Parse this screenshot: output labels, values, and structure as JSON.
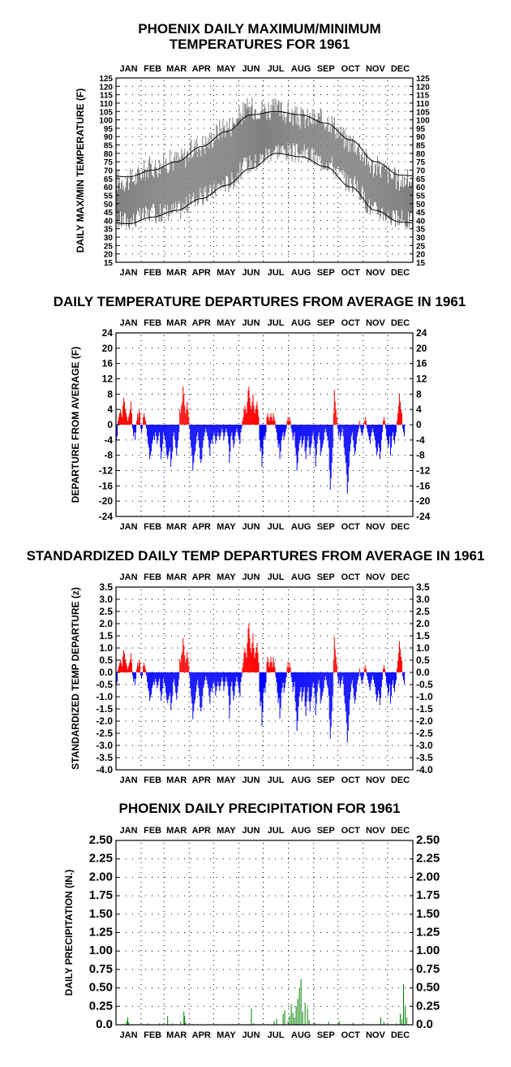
{
  "months": [
    "JAN",
    "FEB",
    "MAR",
    "APR",
    "MAY",
    "JUN",
    "JUL",
    "AUG",
    "SEP",
    "OCT",
    "NOV",
    "DEC"
  ],
  "colors": {
    "pos": "#ff0000",
    "neg": "#0000ff",
    "range": "#808080",
    "precip": "#008000",
    "axis": "#000000"
  },
  "chart_data": [
    {
      "type": "area",
      "title_line1": "PHOENIX DAILY MAXIMUM/MINIMUM",
      "title_line2": "TEMPERATURES FOR 1961",
      "ylabel": "DAILY MAX/MIN TEMPERATURE (F)",
      "ylim": [
        15,
        125
      ],
      "yticks": [
        15,
        20,
        25,
        30,
        35,
        40,
        45,
        50,
        55,
        60,
        65,
        70,
        75,
        80,
        85,
        90,
        95,
        100,
        105,
        110,
        115,
        120,
        125
      ],
      "grid": true,
      "normal_max_monthly": [
        66,
        70,
        75,
        84,
        93,
        103,
        105,
        103,
        98,
        88,
        75,
        67
      ],
      "normal_min_monthly": [
        38,
        42,
        46,
        53,
        61,
        71,
        80,
        78,
        72,
        60,
        46,
        39
      ],
      "series": [
        {
          "name": "",
          "kind": "daily_max_estimate",
          "monthly_mean": [
            64,
            72,
            76,
            85,
            96,
            107,
            106,
            101,
            100,
            87,
            72,
            64
          ]
        },
        {
          "name": "",
          "kind": "daily_min_estimate",
          "monthly_mean": [
            40,
            44,
            46,
            54,
            62,
            74,
            82,
            80,
            75,
            62,
            46,
            40
          ]
        }
      ]
    },
    {
      "type": "bar",
      "title": "DAILY TEMPERATURE DEPARTURES FROM AVERAGE IN 1961",
      "ylabel": "DEPARTURE FROM AVERAGE (F)",
      "ylim": [
        -24,
        24
      ],
      "yticks": [
        24,
        20,
        16,
        12,
        8,
        4,
        0,
        -4,
        -8,
        -12,
        -16,
        -20,
        -24
      ],
      "yticklabels": [
        "24",
        "20",
        "16",
        "12",
        "8",
        "4",
        "0",
        "-4",
        "-8",
        "-12",
        "-16",
        "-20",
        "-24"
      ],
      "grid": true,
      "x": "day of year 1-365",
      "values": [
        -4,
        -3,
        1,
        2,
        3,
        4,
        3,
        2,
        5,
        7,
        6,
        4,
        3,
        2,
        1,
        2,
        3,
        4,
        6,
        3,
        -1,
        -3,
        -2,
        -4,
        -2,
        1,
        3,
        2,
        4,
        3,
        -1,
        -2,
        -1,
        2,
        3,
        2,
        1,
        -1,
        -3,
        -5,
        -6,
        -9,
        -8,
        -7,
        -5,
        -4,
        -3,
        -4,
        -2,
        -3,
        -5,
        -4,
        -3,
        -2,
        -6,
        -9,
        -7,
        -5,
        -2,
        -3,
        -4,
        -6,
        -8,
        -9,
        -8,
        -7,
        -6,
        -11,
        -9,
        -7,
        -3,
        -2,
        -4,
        -6,
        -8,
        -6,
        -4,
        -2,
        4,
        3,
        5,
        6,
        10,
        8,
        5,
        3,
        4,
        6,
        4,
        2,
        -1,
        -4,
        -6,
        -8,
        -12,
        -10,
        -8,
        -7,
        -5,
        -3,
        -2,
        -4,
        -6,
        -9,
        -10,
        -9,
        -6,
        -4,
        -3,
        -2,
        -1,
        -2,
        -3,
        -4,
        -6,
        -8,
        -5,
        -4,
        -5,
        -3,
        -2,
        -3,
        -5,
        -4,
        -3,
        -2,
        -3,
        -4,
        -3,
        -2,
        -1,
        -2,
        -4,
        -3,
        -2,
        -1,
        -2,
        -3,
        -5,
        -10,
        -7,
        -3,
        -2,
        -4,
        -6,
        -5,
        -3,
        -2,
        -1,
        -2,
        -3,
        -4,
        -5,
        -2,
        -1,
        1,
        2,
        4,
        5,
        4,
        3,
        6,
        9,
        10,
        7,
        5,
        4,
        6,
        8,
        5,
        3,
        4,
        5,
        6,
        4,
        2,
        -4,
        -7,
        -6,
        -11,
        -8,
        -4,
        -3,
        -4,
        -2,
        2,
        3,
        2,
        1,
        2,
        3,
        2,
        1,
        3,
        2,
        1,
        -1,
        -2,
        -4,
        -6,
        -5,
        -9,
        -7,
        -4,
        -3,
        -2,
        -4,
        -3,
        -2,
        -1,
        1,
        2,
        1,
        2,
        1,
        -1,
        -2,
        -4,
        -3,
        -2,
        -6,
        -8,
        -12,
        -10,
        -7,
        -5,
        -4,
        -3,
        -6,
        -5,
        -4,
        -3,
        -7,
        -9,
        -6,
        -4,
        -3,
        -6,
        -8,
        -6,
        -5,
        -3,
        -2,
        -4,
        -6,
        -11,
        -8,
        -5,
        -3,
        -2,
        -4,
        -8,
        -7,
        -6,
        -5,
        -4,
        -2,
        -1,
        -2,
        -3,
        -4,
        -6,
        -12,
        -17,
        -14,
        -10,
        -6,
        3,
        9,
        6,
        4,
        2,
        -1,
        -3,
        -2,
        -4,
        -3,
        -2,
        -1,
        -3,
        -6,
        -8,
        -10,
        -13,
        -18,
        -15,
        -11,
        -7,
        -5,
        -3,
        -2,
        -4,
        -6,
        -8,
        -7,
        -5,
        -3,
        -2,
        -1,
        1,
        -1,
        -2,
        -3,
        -2,
        -1,
        1,
        2,
        1,
        -1,
        -2,
        -3,
        -4,
        -5,
        -3,
        -2,
        -1,
        -2,
        -3,
        -4,
        -6,
        -8,
        -7,
        -5,
        -6,
        -9,
        -7,
        -4,
        -2,
        1,
        2,
        1,
        -1,
        -3,
        -4,
        -6,
        -5,
        -3,
        -8,
        -6,
        -3,
        -2,
        -4,
        -5,
        -3,
        -2,
        1,
        3,
        5,
        8,
        6,
        4,
        3,
        -1,
        -2,
        -3
      ]
    },
    {
      "type": "bar",
      "title": "STANDARDIZED DAILY TEMP DEPARTURES FROM AVERAGE IN 1961",
      "ylabel": "STANDARDIZED TEMP DEPARTURE (z)",
      "ylim": [
        -4,
        3.5
      ],
      "yticks": [
        3.5,
        3,
        2.5,
        2,
        1.5,
        1,
        0.5,
        0,
        -0.5,
        -1,
        -1.5,
        -2,
        -2.5,
        -3,
        -3.5,
        -4
      ],
      "yticklabels": [
        "3.5",
        "3.0",
        "2.5",
        "2.0",
        "1.5",
        "1.0",
        "0.5",
        "0.0",
        "-0.5",
        "-1.0",
        "-1.5",
        "-2.0",
        "-2.5",
        "-3.0",
        "-3.5",
        "-4.0"
      ],
      "grid": true,
      "x": "day of year 1-365",
      "scale_from_departures": [
        0.13,
        0.13,
        0.14,
        0.16,
        0.19,
        0.2,
        0.21,
        0.2,
        0.16,
        0.16,
        0.15,
        0.16
      ]
    },
    {
      "type": "bar",
      "title": "PHOENIX DAILY PRECIPITATION FOR 1961",
      "ylabel": "DAILY PRECIPITATION (IN.)",
      "ylim": [
        0,
        2.5
      ],
      "yticks": [
        2.5,
        2.25,
        2.0,
        1.75,
        1.5,
        1.25,
        1.0,
        0.75,
        0.5,
        0.25,
        0.0
      ],
      "yticklabels": [
        "2.50",
        "2.25",
        "2.00",
        "1.75",
        "1.50",
        "1.25",
        "1.00",
        "0.75",
        "0.50",
        "0.25",
        "0.0"
      ],
      "grid": true,
      "points": [
        [
          12,
          0.02
        ],
        [
          14,
          0.05
        ],
        [
          15,
          0.1
        ],
        [
          16,
          0.03
        ],
        [
          35,
          0.01
        ],
        [
          40,
          0.02
        ],
        [
          54,
          0.02
        ],
        [
          64,
          0.12
        ],
        [
          70,
          0.02
        ],
        [
          80,
          0.04
        ],
        [
          84,
          0.18
        ],
        [
          85,
          0.12
        ],
        [
          86,
          0.03
        ],
        [
          167,
          0.22
        ],
        [
          170,
          0.02
        ],
        [
          195,
          0.05
        ],
        [
          198,
          0.08
        ],
        [
          206,
          0.15
        ],
        [
          208,
          0.2
        ],
        [
          212,
          0.05
        ],
        [
          214,
          0.12
        ],
        [
          216,
          0.28
        ],
        [
          218,
          0.16
        ],
        [
          220,
          0.1
        ],
        [
          222,
          0.25
        ],
        [
          224,
          0.35
        ],
        [
          226,
          0.5
        ],
        [
          228,
          0.62
        ],
        [
          230,
          0.18
        ],
        [
          233,
          0.3
        ],
        [
          236,
          0.22
        ],
        [
          238,
          0.06
        ],
        [
          245,
          0.03
        ],
        [
          262,
          0.04
        ],
        [
          275,
          0.05
        ],
        [
          292,
          0.03
        ],
        [
          326,
          0.1
        ],
        [
          330,
          0.04
        ],
        [
          345,
          0.02
        ],
        [
          350,
          0.15
        ],
        [
          352,
          0.08
        ],
        [
          354,
          0.55
        ],
        [
          356,
          0.25
        ],
        [
          358,
          0.1
        ]
      ]
    }
  ]
}
